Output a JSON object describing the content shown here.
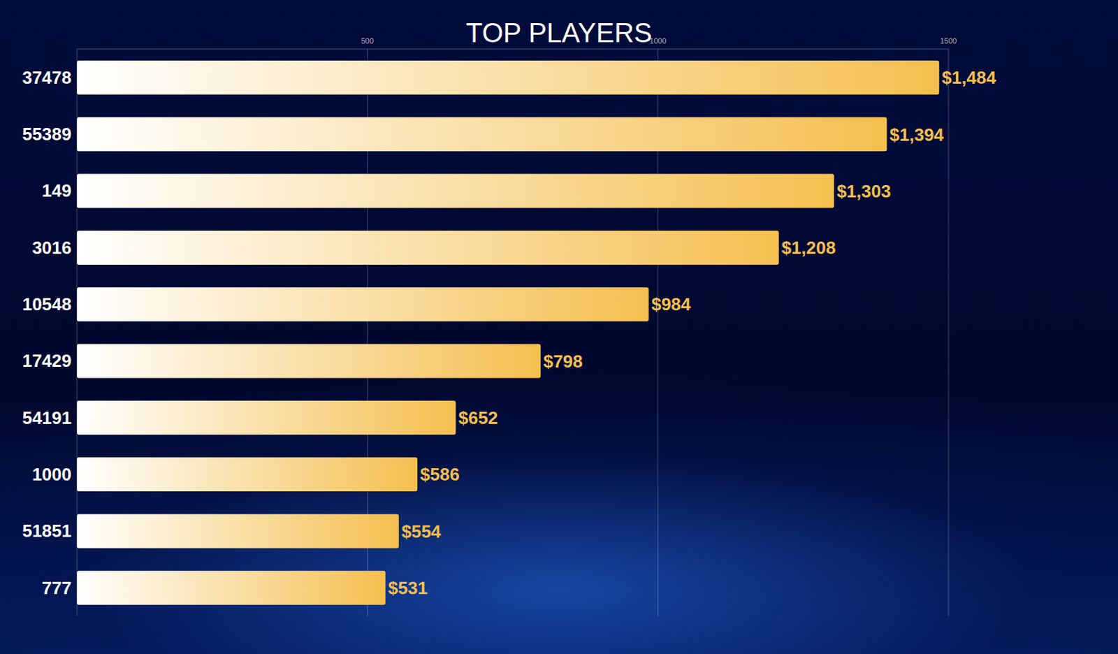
{
  "chart_data": {
    "type": "bar",
    "title": "TOP PLAYERS",
    "orientation": "horizontal",
    "categories": [
      "37478",
      "55389",
      "149",
      "3016",
      "10548",
      "17429",
      "54191",
      "1000",
      "51851",
      "777"
    ],
    "values": [
      1484,
      1394,
      1303,
      1208,
      984,
      798,
      652,
      586,
      554,
      531
    ],
    "value_labels": [
      "$1,484",
      "$1,394",
      "$1,303",
      "$1,208",
      "$984",
      "$798",
      "$652",
      "$586",
      "$554",
      "$531"
    ],
    "color": "#f4bf4f",
    "xlim": [
      0,
      1500
    ],
    "xticks": [
      500,
      1000,
      1500
    ],
    "grid": true,
    "data_labels": true
  }
}
